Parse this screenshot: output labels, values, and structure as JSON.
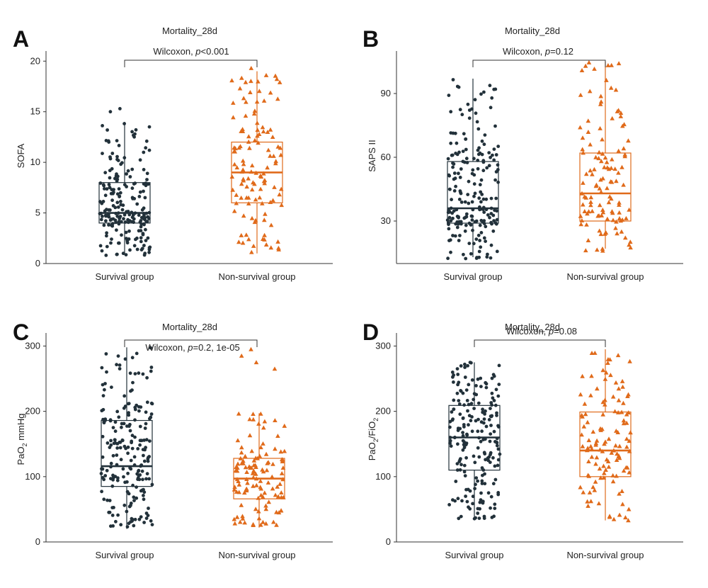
{
  "figure": {
    "colors": {
      "survival": "#22313a",
      "nonsurvival": "#e06a1a",
      "axis": "#333333",
      "text": "#222222"
    }
  },
  "chart_data": [
    {
      "panel": "A",
      "type": "boxplot",
      "title": "Mortality_28d",
      "xlabel": "",
      "ylabel": "SOFA",
      "ylabel_main": "SOFA",
      "ylabel_sub": "",
      "ylabel_tail": "",
      "ylim": [
        0,
        21
      ],
      "yticks": [
        0,
        5,
        10,
        15,
        20
      ],
      "categories": [
        "Survival group",
        "Non-survival group"
      ],
      "series": [
        {
          "name": "Survival group",
          "marker": "circle",
          "color": "#22313a",
          "min": 1,
          "q1": 4,
          "median": 5,
          "q3": 8,
          "max": 14,
          "n": 210,
          "outliers": [
            15,
            15.3
          ],
          "range": [
            0.8,
            14
          ]
        },
        {
          "name": "Non-survival group",
          "marker": "triangle",
          "color": "#e06a1a",
          "min": 1,
          "q1": 6,
          "median": 9,
          "q3": 12,
          "max": 19,
          "n": 120,
          "outliers": [
            19.3
          ],
          "range": [
            1,
            19
          ]
        }
      ],
      "annotation": {
        "prefix": "Wilcoxon, ",
        "italic": "p",
        "suffix": "<0.001"
      }
    },
    {
      "panel": "B",
      "type": "boxplot",
      "title": "Mortality_28d",
      "xlabel": "",
      "ylabel": "SAPS II",
      "ylabel_main": "SAPS II",
      "ylabel_sub": "",
      "ylabel_tail": "",
      "ylim": [
        10,
        110
      ],
      "yticks": [
        30,
        60,
        90
      ],
      "categories": [
        "Survival group",
        "Non-survival group"
      ],
      "series": [
        {
          "name": "Survival group",
          "marker": "circle",
          "color": "#22313a",
          "min": 13,
          "q1": 29,
          "median": 36,
          "q3": 58,
          "max": 97,
          "n": 210,
          "outliers": [],
          "range": [
            12,
            97
          ]
        },
        {
          "name": "Non-survival group",
          "marker": "triangle",
          "color": "#e06a1a",
          "min": 17,
          "q1": 30,
          "median": 43,
          "q3": 62,
          "max": 105,
          "n": 120,
          "outliers": [],
          "range": [
            16,
            105
          ]
        }
      ],
      "annotation": {
        "prefix": "Wilcoxon, ",
        "italic": "p",
        "suffix": "=0.12"
      }
    },
    {
      "panel": "C",
      "type": "boxplot",
      "title": "Mortality_28d",
      "xlabel": "",
      "ylabel": "PaO2 mmHg",
      "ylabel_main": "PaO",
      "ylabel_sub": "2",
      "ylabel_tail": " mmHg",
      "ylim": [
        0,
        320
      ],
      "yticks": [
        0,
        100,
        200,
        300
      ],
      "categories": [
        "Survival group",
        "Non-survival group"
      ],
      "series": [
        {
          "name": "Survival group",
          "marker": "circle",
          "color": "#22313a",
          "min": 20,
          "q1": 85,
          "median": 116,
          "q3": 186,
          "max": 298,
          "n": 210,
          "outliers": [],
          "range": [
            20,
            298
          ]
        },
        {
          "name": "Non-survival group",
          "marker": "triangle",
          "color": "#e06a1a",
          "min": 22,
          "q1": 66,
          "median": 97,
          "q3": 128,
          "max": 197,
          "n": 120,
          "outliers": [
            265,
            275,
            285,
            295
          ],
          "range": [
            22,
            197
          ]
        }
      ],
      "annotation": {
        "prefix": "Wilcoxon, ",
        "italic": "p",
        "suffix": "=0.2, 1e-05"
      }
    },
    {
      "panel": "D",
      "type": "boxplot",
      "title": "Mortality_28d",
      "xlabel": "",
      "ylabel": "PaO2/FiO2",
      "ylabel_main": "PaO",
      "ylabel_sub": "2",
      "ylabel_tail": "/FiO",
      "ylabel_sub2": "2",
      "ylim": [
        0,
        320
      ],
      "yticks": [
        0,
        100,
        200,
        300
      ],
      "categories": [
        "Survival group",
        "Non-survival group"
      ],
      "series": [
        {
          "name": "Survival group",
          "marker": "circle",
          "color": "#22313a",
          "min": 35,
          "q1": 110,
          "median": 160,
          "q3": 209,
          "max": 275,
          "n": 210,
          "outliers": [],
          "range": [
            33,
            275
          ]
        },
        {
          "name": "Non-survival group",
          "marker": "triangle",
          "color": "#e06a1a",
          "min": 33,
          "q1": 100,
          "median": 140,
          "q3": 199,
          "max": 295,
          "n": 120,
          "outliers": [],
          "range": [
            33,
            295
          ]
        }
      ],
      "annotation": {
        "prefix": "Wilcoxon, ",
        "italic": "p",
        "suffix": "=0.08"
      }
    }
  ]
}
